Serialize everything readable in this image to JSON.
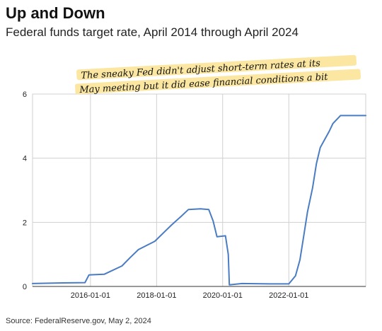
{
  "title": "Up and Down",
  "subtitle": "Federal funds target rate, April 2014 through April 2024",
  "source": "Source: FederalReserve.gov, May 2, 2024",
  "annotation": {
    "line1": "The sneaky Fed didn't adjust short-term rates at its",
    "line2": "May meeting but it did ease financial conditions a bit"
  },
  "colors": {
    "line": "#4a7cc4",
    "highlight": "#fbe7a1",
    "grid": "#d0d0d0"
  },
  "chart_data": {
    "type": "line",
    "title": "Up and Down",
    "subtitle": "Federal funds target rate, April 2014 through April 2024",
    "xlabel": "",
    "ylabel": "",
    "xlim": [
      "2014-04-01",
      "2024-04-30"
    ],
    "ylim": [
      0,
      6
    ],
    "x_ticks": [
      "2016-01-01",
      "2018-01-01",
      "2020-01-01",
      "2022-01-01"
    ],
    "y_ticks": [
      0,
      2,
      4,
      6
    ],
    "grid": true,
    "series": [
      {
        "x": [
          "2014-04-01",
          "2015-03-01",
          "2015-11-01",
          "2015-12-16",
          "2016-06-01",
          "2016-12-14",
          "2017-03-15",
          "2017-06-14",
          "2017-12-13",
          "2018-03-21",
          "2018-06-13",
          "2018-09-26",
          "2018-12-19",
          "2019-05-01",
          "2019-07-31",
          "2019-09-18",
          "2019-10-30",
          "2020-02-01",
          "2020-03-03",
          "2020-03-15",
          "2020-08-01",
          "2021-06-01",
          "2022-01-01",
          "2022-03-16",
          "2022-05-04",
          "2022-06-15",
          "2022-07-27",
          "2022-09-21",
          "2022-11-02",
          "2022-12-14",
          "2023-02-01",
          "2023-03-22",
          "2023-05-03",
          "2023-07-26",
          "2024-04-30"
        ],
        "y": [
          0.09,
          0.11,
          0.12,
          0.36,
          0.38,
          0.64,
          0.9,
          1.15,
          1.41,
          1.68,
          1.91,
          2.18,
          2.4,
          2.42,
          2.4,
          2.04,
          1.55,
          1.58,
          1.0,
          0.05,
          0.09,
          0.08,
          0.08,
          0.33,
          0.83,
          1.58,
          2.33,
          3.08,
          3.83,
          4.33,
          4.58,
          4.83,
          5.08,
          5.33,
          5.33
        ]
      }
    ]
  }
}
